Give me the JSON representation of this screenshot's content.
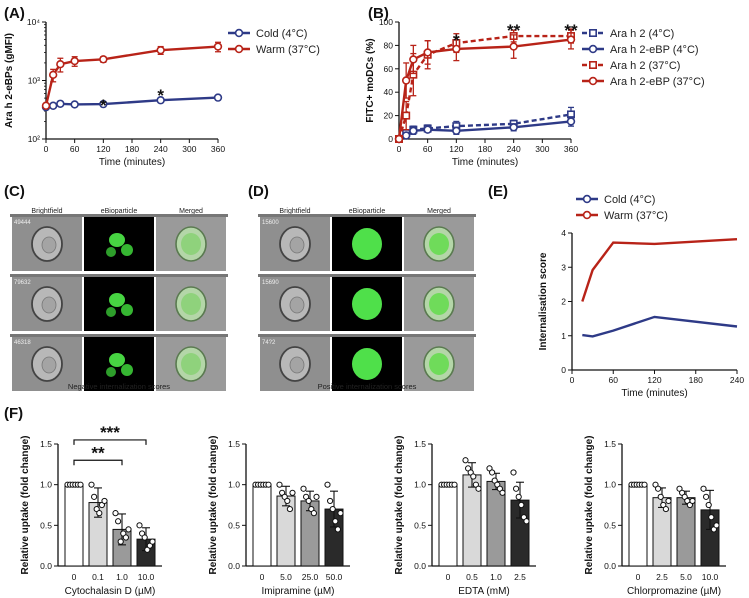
{
  "panels": {
    "A": {
      "label": "(A)"
    },
    "B": {
      "label": "(B)"
    },
    "C": {
      "label": "(C)",
      "headers": [
        "Brightfield",
        "eBioparticle",
        "Merged"
      ],
      "cell_ids": [
        "49444",
        "79632",
        "46318"
      ],
      "caption": "Negative internalization scores"
    },
    "D": {
      "label": "(D)",
      "headers": [
        "Brightfield",
        "eBioparticle",
        "Merged"
      ],
      "cell_ids": [
        "15600",
        "15690",
        "74?2"
      ],
      "caption": "Positive internalization scores"
    },
    "E": {
      "label": "(E)"
    },
    "F": {
      "label": "(F)"
    }
  },
  "colors": {
    "blue": "#2e3a87",
    "red": "#b82318",
    "grey_light": "#d9d9d9",
    "grey_mid": "#9a9a9a",
    "grey_dark": "#6e6e6e",
    "black_bar": "#222222"
  },
  "chart_data": [
    {
      "id": "A",
      "type": "line",
      "xlabel": "Time (minutes)",
      "ylabel": "Ara h 2-eBPs (gMFI)",
      "yscale": "log",
      "ylim": [
        100,
        10000
      ],
      "yticks": [
        100,
        1000,
        10000
      ],
      "ytick_labels": [
        "10²",
        "10³",
        "10⁴"
      ],
      "xlim": [
        0,
        360
      ],
      "xticks": [
        0,
        60,
        120,
        180,
        240,
        300,
        360
      ],
      "x": [
        0,
        15,
        30,
        60,
        120,
        240,
        360
      ],
      "series": [
        {
          "name": "Cold (4°C)",
          "color": "#2e3a87",
          "values": [
            350,
            370,
            400,
            390,
            395,
            460,
            510
          ],
          "err": [
            0,
            15,
            25,
            20,
            20,
            25,
            25
          ]
        },
        {
          "name": "Warm (37°C)",
          "color": "#b82318",
          "values": [
            370,
            1250,
            1900,
            2150,
            2300,
            3300,
            3800
          ],
          "err": [
            0,
            300,
            500,
            400,
            250,
            500,
            700
          ]
        }
      ],
      "annotations": [
        {
          "x": 120,
          "text": "*"
        },
        {
          "x": 240,
          "text": "*"
        }
      ],
      "legend": "right"
    },
    {
      "id": "B",
      "type": "line",
      "xlabel": "Time (minutes)",
      "ylabel": "FITC+ moDCs (%)",
      "ylim": [
        0,
        100
      ],
      "yticks": [
        0,
        20,
        40,
        60,
        80,
        100
      ],
      "xlim": [
        0,
        360
      ],
      "xticks": [
        0,
        60,
        120,
        180,
        240,
        300,
        360
      ],
      "xtick_labels": [
        "0",
        "60",
        "120",
        "180",
        "240",
        "300",
        "360"
      ],
      "x": [
        0,
        15,
        30,
        60,
        120,
        240,
        360
      ],
      "series": [
        {
          "name": "Ara h 2 (4°C)",
          "color": "#2e3a87",
          "dashed": true,
          "values": [
            0,
            5,
            8,
            9,
            11,
            13,
            21
          ],
          "err": [
            0,
            2,
            3,
            3,
            4,
            3,
            6
          ]
        },
        {
          "name": "Ara h 2-eBP (4°C)",
          "color": "#2e3a87",
          "dashed": false,
          "values": [
            0,
            3,
            7,
            8,
            7,
            10,
            15
          ],
          "err": [
            0,
            2,
            3,
            2,
            3,
            3,
            4
          ]
        },
        {
          "name": "Ara h 2 (37°C)",
          "color": "#b82318",
          "dashed": true,
          "values": [
            0,
            20,
            55,
            72,
            82,
            88,
            88
          ],
          "err": [
            0,
            12,
            18,
            12,
            8,
            5,
            6
          ]
        },
        {
          "name": "Ara h 2-eBP (37°C)",
          "color": "#b82318",
          "dashed": false,
          "values": [
            0,
            50,
            68,
            74,
            77,
            79,
            85
          ],
          "err": [
            0,
            15,
            12,
            10,
            10,
            10,
            8
          ]
        }
      ],
      "annotations": [
        {
          "x": 120,
          "text": "*"
        },
        {
          "x": 240,
          "text": "**"
        },
        {
          "x": 360,
          "text": "**"
        }
      ],
      "legend": "right"
    },
    {
      "id": "E",
      "type": "line",
      "xlabel": "Time (minutes)",
      "ylabel": "Internalisation score",
      "ylim": [
        0,
        4
      ],
      "yticks": [
        0,
        1,
        2,
        3,
        4
      ],
      "xlim": [
        0,
        240
      ],
      "xticks": [
        0,
        60,
        120,
        180,
        240
      ],
      "x": [
        15,
        30,
        60,
        120,
        240
      ],
      "series": [
        {
          "name": "Cold (4°C)",
          "color": "#2e3a87",
          "values": [
            1.02,
            0.98,
            1.15,
            1.55,
            1.27
          ]
        },
        {
          "name": "Warm (37°C)",
          "color": "#b82318",
          "values": [
            2.0,
            2.92,
            3.72,
            3.68,
            3.82
          ]
        }
      ],
      "legend": "top"
    },
    {
      "id": "F1",
      "type": "bar",
      "ylabel": "Relative uptake (fold change)",
      "xlabel": "Cytochalasin D (µM)",
      "categories": [
        "0",
        "0.1",
        "1.0",
        "10.0"
      ],
      "values": [
        1.0,
        0.78,
        0.45,
        0.33
      ],
      "err": [
        0,
        0.18,
        0.19,
        0.14
      ],
      "points": [
        [
          1,
          1,
          1,
          1,
          1,
          1
        ],
        [
          1.0,
          0.85,
          0.7,
          0.65,
          0.75,
          0.8
        ],
        [
          0.65,
          0.55,
          0.3,
          0.4,
          0.35,
          0.45
        ],
        [
          0.5,
          0.4,
          0.35,
          0.2,
          0.25,
          0.3
        ]
      ],
      "ylim": [
        0,
        1.5
      ],
      "yticks": [
        0,
        0.5,
        1.0,
        1.5
      ],
      "ytick_labels": [
        "0.0",
        "0.5",
        "1.0",
        "1.5"
      ],
      "significance": [
        {
          "from": 0,
          "to": 2,
          "text": "**"
        },
        {
          "from": 0,
          "to": 3,
          "text": "***"
        }
      ]
    },
    {
      "id": "F2",
      "type": "bar",
      "ylabel": "Relative uptake (fold change)",
      "xlabel": "Imipramine (µM)",
      "categories": [
        "0",
        "5.0",
        "25.0",
        "50.0"
      ],
      "values": [
        1.0,
        0.86,
        0.8,
        0.7
      ],
      "err": [
        0,
        0.12,
        0.12,
        0.22
      ],
      "points": [
        [
          1,
          1,
          1,
          1,
          1,
          1
        ],
        [
          1.0,
          0.9,
          0.85,
          0.8,
          0.7,
          0.9
        ],
        [
          0.95,
          0.85,
          0.8,
          0.7,
          0.65,
          0.85
        ],
        [
          1.0,
          0.8,
          0.7,
          0.55,
          0.45,
          0.65
        ]
      ],
      "ylim": [
        0,
        1.5
      ],
      "yticks": [
        0,
        0.5,
        1.0,
        1.5
      ],
      "ytick_labels": [
        "0.0",
        "0.5",
        "1.0",
        "1.5"
      ]
    },
    {
      "id": "F3",
      "type": "bar",
      "ylabel": "Relative uptake (fold change)",
      "xlabel": "EDTA (mM)",
      "categories": [
        "0",
        "0.5",
        "1.0",
        "2.5"
      ],
      "values": [
        1.0,
        1.12,
        1.04,
        0.81
      ],
      "err": [
        0,
        0.15,
        0.1,
        0.22
      ],
      "points": [
        [
          1,
          1,
          1,
          1,
          1,
          1
        ],
        [
          1.3,
          1.2,
          1.15,
          1.1,
          1.0,
          0.95
        ],
        [
          1.2,
          1.15,
          1.05,
          1.0,
          0.95,
          0.9
        ],
        [
          1.15,
          0.95,
          0.85,
          0.75,
          0.6,
          0.55
        ]
      ],
      "ylim": [
        0,
        1.5
      ],
      "yticks": [
        0,
        0.5,
        1.0,
        1.5
      ],
      "ytick_labels": [
        "0.0",
        "0.5",
        "1.0",
        "1.5"
      ]
    },
    {
      "id": "F4",
      "type": "bar",
      "ylabel": "Relative uptake (fold change)",
      "xlabel": "Chlorpromazine (µM)",
      "categories": [
        "0",
        "2.5",
        "5.0",
        "10.0"
      ],
      "values": [
        1.0,
        0.84,
        0.84,
        0.69
      ],
      "err": [
        0,
        0.12,
        0.08,
        0.24
      ],
      "points": [
        [
          1,
          1,
          1,
          1,
          1,
          1
        ],
        [
          1.0,
          0.95,
          0.85,
          0.75,
          0.7,
          0.8
        ],
        [
          0.95,
          0.9,
          0.85,
          0.8,
          0.75,
          0.8
        ],
        [
          0.95,
          0.85,
          0.75,
          0.6,
          0.45,
          0.5
        ]
      ],
      "ylim": [
        0,
        1.5
      ],
      "yticks": [
        0,
        0.5,
        1.0,
        1.5
      ],
      "ytick_labels": [
        "0.0",
        "0.5",
        "1.0",
        "1.5"
      ]
    }
  ]
}
